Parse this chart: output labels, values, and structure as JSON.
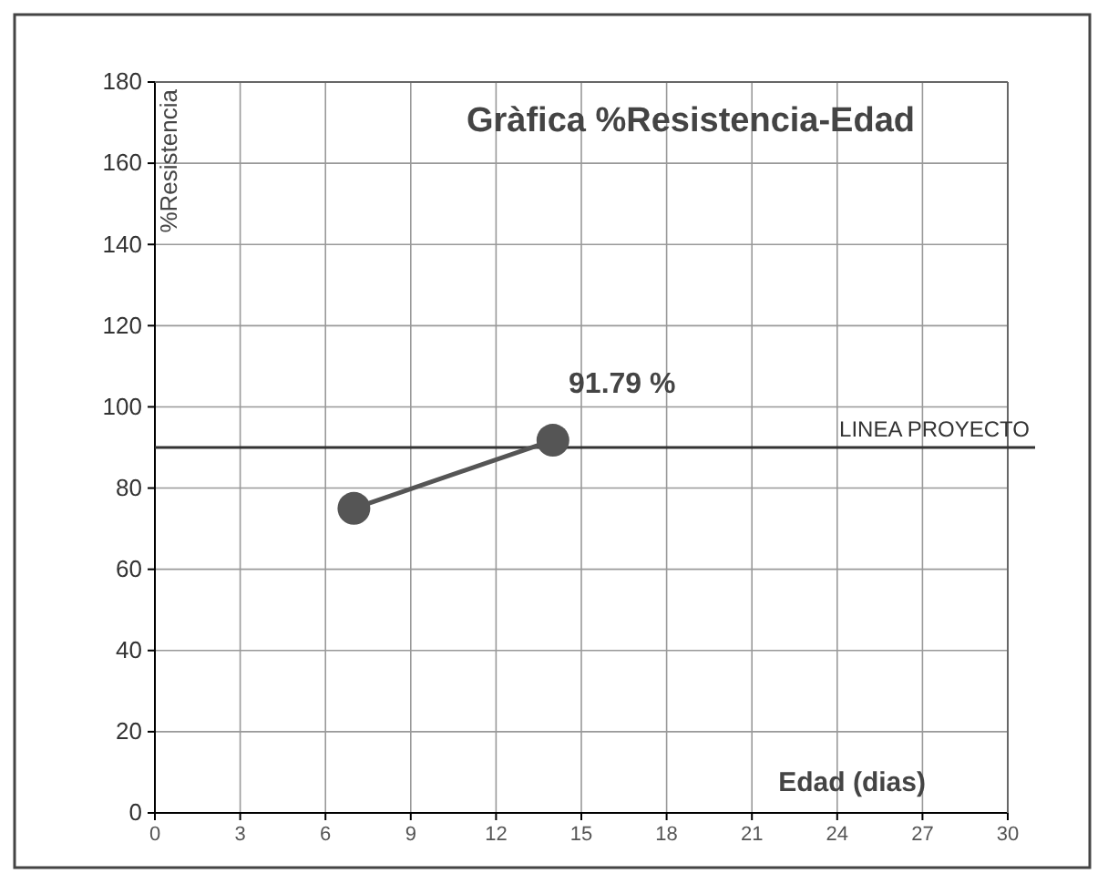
{
  "chart_data": {
    "type": "line",
    "title": "Gràfica %Resistencia-Edad",
    "xlabel": "Edad (dias)",
    "ylabel": "%Resistencia",
    "x": [
      7,
      14
    ],
    "series": [
      {
        "color": "#555555",
        "values": [
          75,
          91.79
        ],
        "value_labels": [
          null,
          "91.79 %"
        ]
      }
    ],
    "xlim": [
      0,
      30
    ],
    "xticks": [
      0,
      3,
      6,
      9,
      12,
      15,
      18,
      21,
      24,
      27,
      30
    ],
    "ylim": [
      0,
      180
    ],
    "yticks": [
      0,
      20,
      40,
      60,
      80,
      100,
      120,
      140,
      160,
      180
    ],
    "grid": true,
    "marker": "circle",
    "line_style": "solid",
    "ref_lines": [
      {
        "axis": "y",
        "value": 90,
        "label": "LINEA PROYECTO",
        "color": "#333333"
      }
    ]
  }
}
